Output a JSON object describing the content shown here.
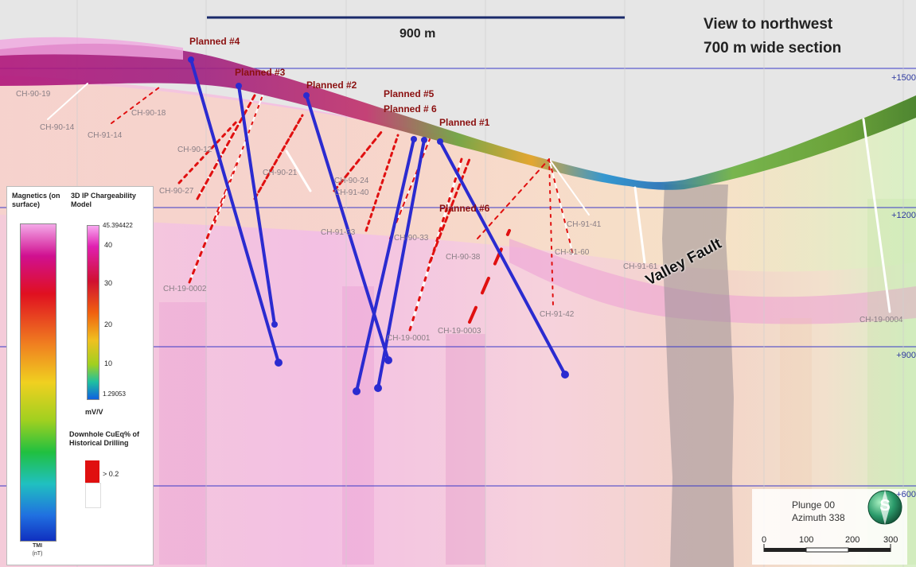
{
  "header": {
    "view_line1": "View to northwest",
    "view_line2": "700 m wide section",
    "scale_bar_label": "900 m"
  },
  "elevations": [
    "+1500",
    "+1200",
    "+900",
    "+600"
  ],
  "planned_holes": [
    "Planned #4",
    "Planned #3",
    "Planned #2",
    "Planned #5",
    "Planned # 6",
    "Planned #1",
    "Planned #6"
  ],
  "historical_holes": [
    "CH-90-19",
    "CH-90-14",
    "CH-90-18",
    "CH-91-14",
    "CH-90-12",
    "CH-90-27",
    "CH-90-21",
    "CH-90-24",
    "CH-91-40",
    "CH-91-33",
    "CH-90-33",
    "CH-90-38",
    "CH-91-41",
    "CH-91-60",
    "CH-91-61",
    "CH-91-42",
    "CH-19-0002",
    "CH-19-0003",
    "CH-19-0001",
    "CH-19-0004"
  ],
  "annotation": {
    "fault": "Valley Fault"
  },
  "legend": {
    "magnetics_title": "Magnetics (on surface)",
    "ip_title": "3D IP Chargeability Model",
    "ip_max": "45.394422",
    "ip_ticks": [
      "40",
      "30",
      "20",
      "10"
    ],
    "ip_min": "1.29053",
    "ip_unit": "mV/V",
    "downhole_title": "Downhole CuEq% of Historical Drilling",
    "downhole_threshold": "> 0.2",
    "tmi_label": "TMI",
    "tmi_unit": "(nT)"
  },
  "orientation": {
    "plunge": "Plunge 00",
    "azimuth": "Azimuth 338",
    "compass_letter": "S"
  },
  "scalebar": {
    "ticks": [
      "0",
      "100",
      "200",
      "300"
    ]
  },
  "colors": {
    "planned_hole": "#2b2bd0",
    "grid_line": "#3a3ac8",
    "anomaly_red": "#e01010",
    "background_pink": "#f2c9e6"
  }
}
